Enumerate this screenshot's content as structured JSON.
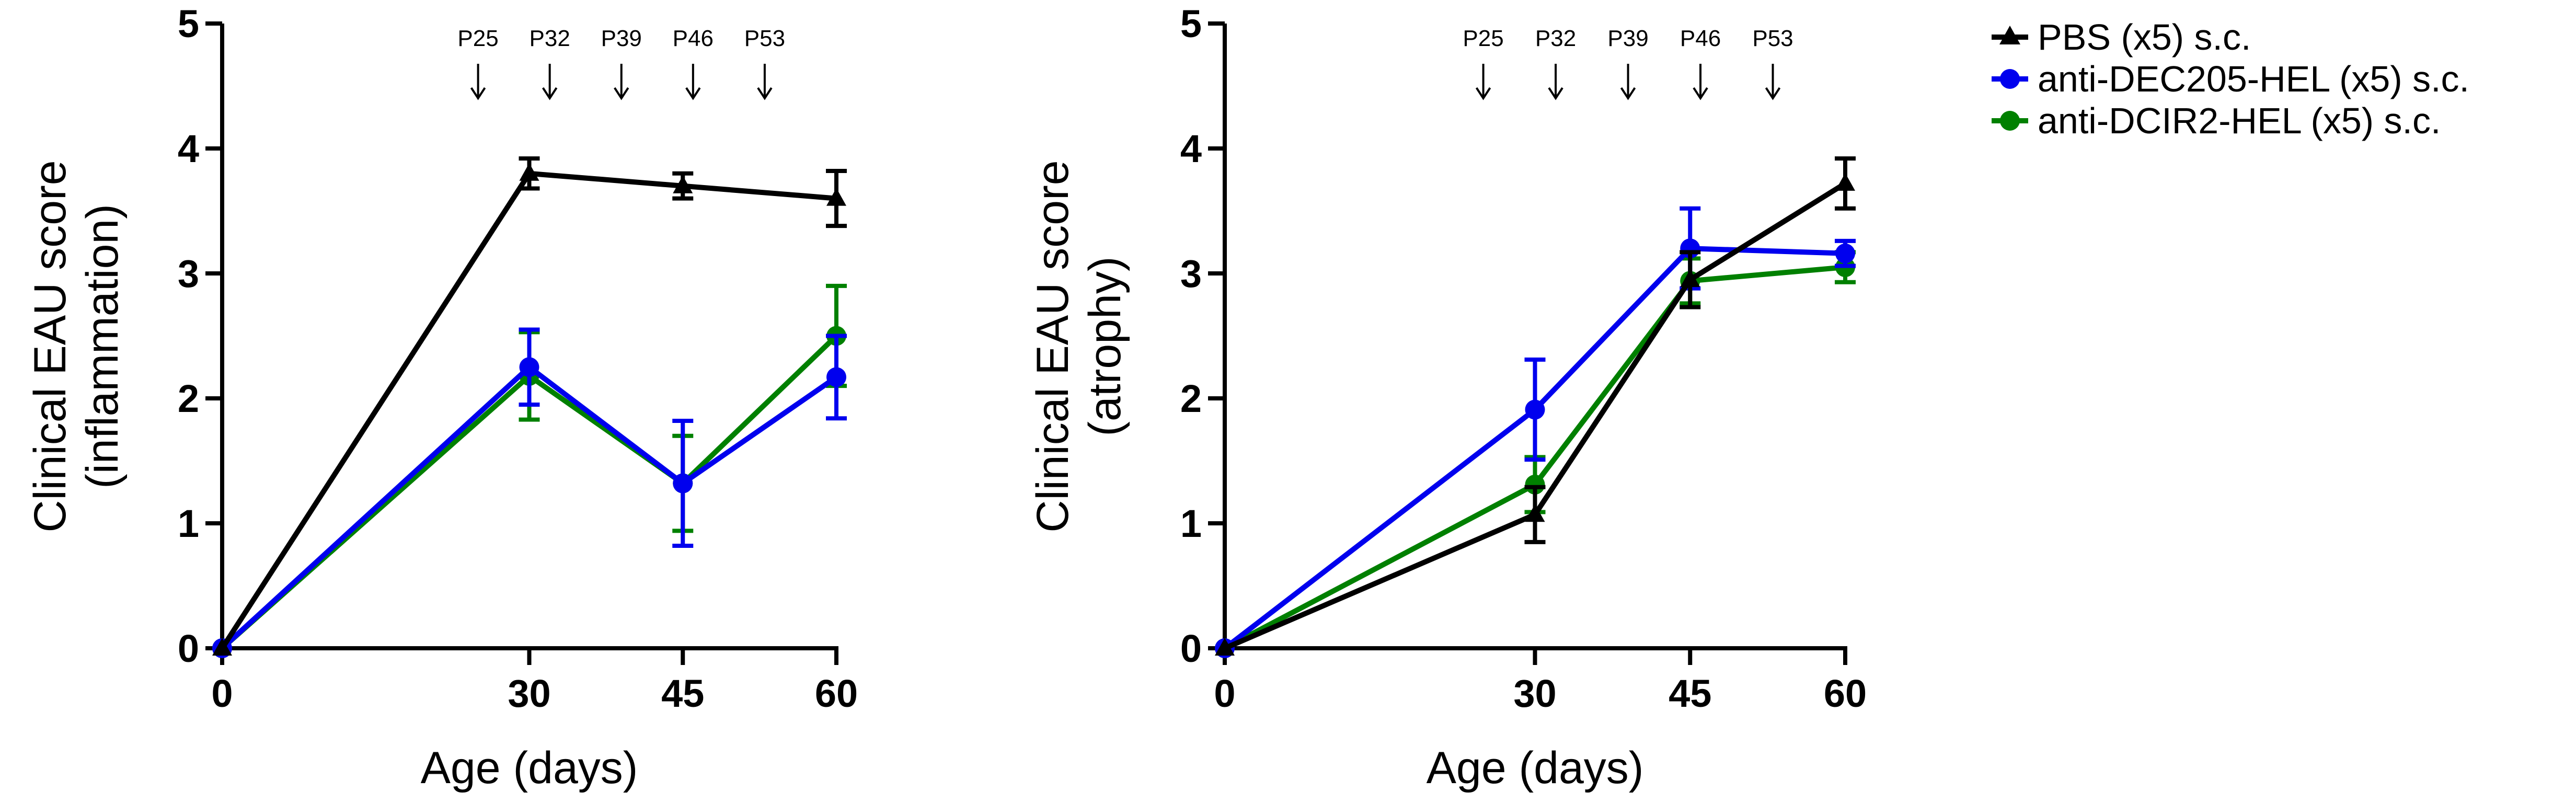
{
  "legend": {
    "position": "top-right",
    "entries": [
      {
        "label": "PBS (x5) s.c.",
        "color": "#000000",
        "marker": "triangle"
      },
      {
        "label": "anti-DEC205-HEL (x5) s.c.",
        "color": "#0000ee",
        "marker": "circle"
      },
      {
        "label": "anti-DCIR2-HEL (x5) s.c.",
        "color": "#008000",
        "marker": "circle"
      }
    ]
  },
  "chart_data": [
    {
      "type": "line",
      "title": "",
      "xlabel": "Age (days)",
      "ylabel": "Clinical EAU score",
      "ylabel2": "(inflammation)",
      "xlim": [
        0,
        60
      ],
      "ylim": [
        0,
        5
      ],
      "xticks": [
        0,
        30,
        45,
        60
      ],
      "yticks": [
        0,
        1,
        2,
        3,
        4,
        5
      ],
      "grid": false,
      "annotations": [
        {
          "label": "P25",
          "x": 25
        },
        {
          "label": "P32",
          "x": 32
        },
        {
          "label": "P39",
          "x": 39
        },
        {
          "label": "P46",
          "x": 46
        },
        {
          "label": "P53",
          "x": 53
        }
      ],
      "x": [
        0,
        30,
        45,
        60
      ],
      "series": [
        {
          "name": "PBS (x5) s.c.",
          "color": "#000000",
          "marker": "triangle",
          "values": [
            0,
            3.8,
            3.7,
            3.6
          ],
          "errors": [
            0,
            0.12,
            0.1,
            0.22
          ]
        },
        {
          "name": "anti-DEC205-HEL (x5) s.c.",
          "color": "#0000ee",
          "marker": "circle",
          "values": [
            0,
            2.25,
            1.32,
            2.17
          ],
          "errors": [
            0,
            0.3,
            0.5,
            0.33
          ]
        },
        {
          "name": "anti-DCIR2-HEL (x5) s.c.",
          "color": "#008000",
          "marker": "circle",
          "values": [
            0,
            2.18,
            1.32,
            2.5
          ],
          "errors": [
            0,
            0.35,
            0.38,
            0.4
          ]
        }
      ]
    },
    {
      "type": "line",
      "title": "",
      "xlabel": "Age (days)",
      "ylabel": "Clinical EAU score",
      "ylabel2": "(atrophy)",
      "xlim": [
        0,
        60
      ],
      "ylim": [
        0,
        5
      ],
      "xticks": [
        0,
        30,
        45,
        60
      ],
      "yticks": [
        0,
        1,
        2,
        3,
        4,
        5
      ],
      "grid": false,
      "annotations": [
        {
          "label": "P25",
          "x": 25
        },
        {
          "label": "P32",
          "x": 32
        },
        {
          "label": "P39",
          "x": 39
        },
        {
          "label": "P46",
          "x": 46
        },
        {
          "label": "P53",
          "x": 53
        }
      ],
      "x": [
        0,
        30,
        45,
        60
      ],
      "series": [
        {
          "name": "PBS (x5) s.c.",
          "color": "#000000",
          "marker": "triangle",
          "values": [
            0,
            1.07,
            2.95,
            3.72
          ],
          "errors": [
            0,
            0.22,
            0.22,
            0.2
          ]
        },
        {
          "name": "anti-DEC205-HEL (x5) s.c.",
          "color": "#0000ee",
          "marker": "circle",
          "values": [
            0,
            1.91,
            3.2,
            3.16
          ],
          "errors": [
            0,
            0.4,
            0.32,
            0.1
          ]
        },
        {
          "name": "anti-DCIR2-HEL (x5) s.c.",
          "color": "#008000",
          "marker": "circle",
          "values": [
            0,
            1.31,
            2.94,
            3.05
          ],
          "errors": [
            0,
            0.22,
            0.18,
            0.12
          ]
        }
      ]
    }
  ]
}
